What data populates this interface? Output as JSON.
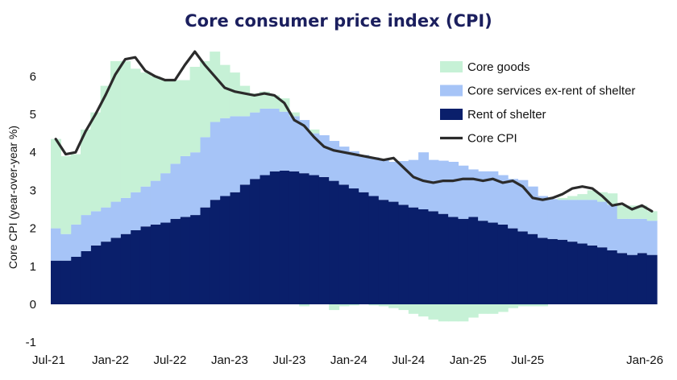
{
  "chart_data": {
    "type": "area",
    "title": "Core consumer price index (CPI)",
    "ylabel": "Core CPI (year-over-year %)",
    "xlabel": "",
    "ylim": [
      -1,
      6.8
    ],
    "yticks": [
      "-1",
      "0",
      "1",
      "2",
      "3",
      "4",
      "5",
      "6"
    ],
    "xticks": [
      "Jul-21",
      "Jan-22",
      "Jul-22",
      "Jan-23",
      "Jul-23",
      "Jan-24",
      "Jul-24",
      "Jan-25",
      "Jul-25",
      "Jan-26"
    ],
    "start_month": "2021-07",
    "end_month": "2026-01",
    "grid": false,
    "legend_position": "top-right",
    "colors": {
      "core_goods": "#c6f1d6",
      "services_ex_shelter": "#a6c4f7",
      "rent_of_shelter": "#0a1f6b",
      "core_cpi": "#2b2b2b"
    },
    "series": [
      {
        "name": "Rent of shelter",
        "key": "rent_of_shelter",
        "values": [
          1.15,
          1.15,
          1.25,
          1.4,
          1.55,
          1.65,
          1.75,
          1.85,
          1.95,
          2.05,
          2.1,
          2.15,
          2.25,
          2.3,
          2.35,
          2.55,
          2.75,
          2.85,
          2.95,
          3.15,
          3.3,
          3.4,
          3.5,
          3.52,
          3.5,
          3.45,
          3.4,
          3.35,
          3.25,
          3.15,
          3.05,
          2.95,
          2.85,
          2.75,
          2.7,
          2.62,
          2.55,
          2.5,
          2.45,
          2.38,
          2.3,
          2.25,
          2.3,
          2.2,
          2.15,
          2.1,
          2.0,
          1.92,
          1.85,
          1.75,
          1.72,
          1.7,
          1.65,
          1.6,
          1.55,
          1.5,
          1.42,
          1.35,
          1.3,
          1.35,
          1.3
        ]
      },
      {
        "name": "Core services ex-rent of shelter",
        "key": "services_ex_shelter",
        "values": [
          0.85,
          0.7,
          0.85,
          0.95,
          0.9,
          0.9,
          0.95,
          0.95,
          1.0,
          1.05,
          1.15,
          1.3,
          1.45,
          1.6,
          1.65,
          1.85,
          2.05,
          2.05,
          2.0,
          1.8,
          1.75,
          1.75,
          1.65,
          1.55,
          1.45,
          1.4,
          1.1,
          1.1,
          1.05,
          1.0,
          0.98,
          0.98,
          1.02,
          1.08,
          1.05,
          1.15,
          1.25,
          1.5,
          1.35,
          1.4,
          1.45,
          1.4,
          1.25,
          1.3,
          1.35,
          1.3,
          1.3,
          1.35,
          1.25,
          1.1,
          1.05,
          1.05,
          1.1,
          1.15,
          1.2,
          1.2,
          1.2,
          0.9,
          0.95,
          0.9,
          0.9
        ]
      },
      {
        "name": "Core goods",
        "key": "core_goods",
        "values": [
          2.35,
          2.05,
          1.85,
          2.25,
          2.6,
          3.2,
          3.7,
          3.6,
          3.25,
          3.0,
          2.75,
          2.45,
          2.2,
          2.0,
          2.25,
          2.0,
          1.85,
          1.4,
          1.15,
          0.8,
          0.5,
          0.45,
          0.35,
          0.35,
          0.1,
          -0.05,
          0.1,
          0.0,
          -0.15,
          -0.05,
          -0.03,
          0.0,
          -0.03,
          -0.05,
          -0.1,
          -0.15,
          -0.25,
          -0.32,
          -0.4,
          -0.45,
          -0.45,
          -0.45,
          -0.35,
          -0.25,
          -0.25,
          -0.2,
          -0.1,
          -0.05,
          -0.05,
          -0.05,
          0.0,
          0.05,
          0.1,
          0.15,
          0.25,
          0.25,
          0.3,
          0.35,
          0.35,
          0.35,
          0.25
        ]
      }
    ],
    "line": {
      "name": "Core CPI",
      "key": "core_cpi",
      "values": [
        4.35,
        3.95,
        4.0,
        4.55,
        5.0,
        5.5,
        6.05,
        6.45,
        6.5,
        6.15,
        6.0,
        5.9,
        5.9,
        6.3,
        6.65,
        6.3,
        6.0,
        5.7,
        5.6,
        5.55,
        5.5,
        5.55,
        5.5,
        5.3,
        4.85,
        4.7,
        4.4,
        4.15,
        4.05,
        4.0,
        3.95,
        3.9,
        3.85,
        3.8,
        3.85,
        3.6,
        3.35,
        3.25,
        3.2,
        3.25,
        3.25,
        3.3,
        3.3,
        3.25,
        3.3,
        3.2,
        3.25,
        3.1,
        2.8,
        2.75,
        2.8,
        2.9,
        3.05,
        3.1,
        3.05,
        2.85,
        2.6,
        2.65,
        2.5,
        2.6,
        2.45
      ]
    }
  }
}
